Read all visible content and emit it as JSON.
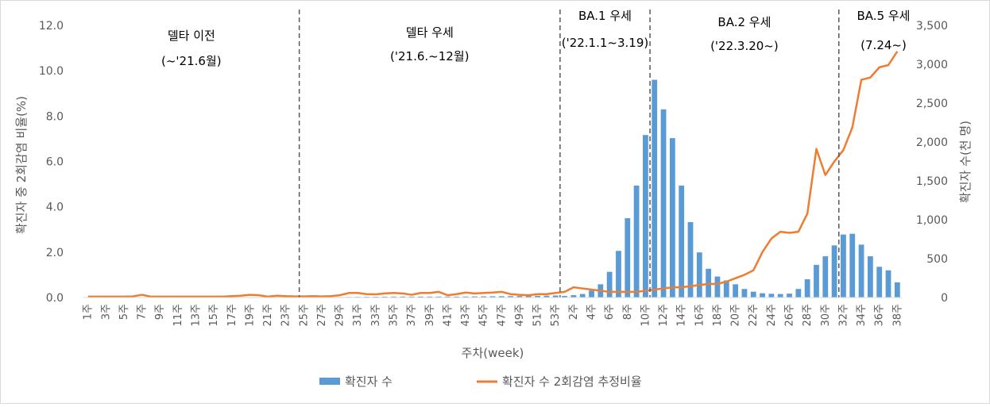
{
  "chart_data": {
    "type": "bar+line",
    "xlabel": "주차(week)",
    "ylabel_left": "확진자 중 2회감염 비율(%)",
    "ylabel_right": "확진자 수(천 명)",
    "ylim_left": [
      0,
      12
    ],
    "ylim_right": [
      0,
      3500
    ],
    "yticks_left": [
      "0.0",
      "2.0",
      "4.0",
      "6.0",
      "8.0",
      "10.0",
      "12.0"
    ],
    "yticks_right": [
      "0",
      "500",
      "1,000",
      "1,500",
      "2,000",
      "2,500",
      "3,000",
      "3,500"
    ],
    "categories": [
      "1주",
      "2주",
      "3주",
      "4주",
      "5주",
      "6주",
      "7주",
      "8주",
      "9주",
      "10주",
      "11주",
      "12주",
      "13주",
      "14주",
      "15주",
      "16주",
      "17주",
      "18주",
      "19주",
      "20주",
      "21주",
      "22주",
      "23주",
      "24주",
      "25주",
      "26주",
      "27주",
      "28주",
      "29주",
      "30주",
      "31주",
      "32주",
      "33주",
      "34주",
      "35주",
      "36주",
      "37주",
      "38주",
      "39주",
      "40주",
      "41주",
      "42주",
      "43주",
      "44주",
      "45주",
      "46주",
      "47주",
      "48주",
      "49주",
      "50주",
      "51주",
      "52주",
      "53주",
      "1주",
      "2주",
      "3주",
      "4주",
      "5주",
      "6주",
      "7주",
      "8주",
      "9주",
      "10주",
      "11주",
      "12주",
      "13주",
      "14주",
      "15주",
      "16주",
      "17주",
      "18주",
      "19주",
      "20주",
      "21주",
      "22주",
      "23주",
      "24주",
      "25주",
      "26주",
      "27주",
      "28주",
      "29주",
      "30주",
      "31주",
      "32주",
      "33주",
      "34주",
      "35주",
      "36주",
      "37주",
      "38주"
    ],
    "series": [
      {
        "name": "확진자 수",
        "type": "bar",
        "axis": "right",
        "color": "#5B9BD5",
        "values": [
          4,
          3,
          3,
          3,
          3,
          3,
          3,
          3,
          3,
          3,
          3,
          3,
          3,
          3,
          3,
          3,
          3,
          3,
          4,
          4,
          4,
          4,
          4,
          4,
          5,
          5,
          5,
          5,
          6,
          7,
          8,
          9,
          10,
          11,
          12,
          12,
          12,
          12,
          12,
          12,
          12,
          12,
          13,
          14,
          15,
          16,
          17,
          18,
          19,
          20,
          22,
          24,
          26,
          20,
          30,
          45,
          90,
          170,
          330,
          600,
          1020,
          1440,
          2090,
          2800,
          2420,
          2050,
          1440,
          970,
          580,
          370,
          270,
          220,
          170,
          110,
          75,
          55,
          48,
          45,
          50,
          110,
          235,
          420,
          530,
          670,
          810,
          820,
          680,
          530,
          395,
          350,
          195
        ]
      },
      {
        "name": "확진자 수 2회감염 추정비율",
        "type": "line",
        "axis": "left",
        "color": "#ED7D31",
        "values": [
          0.04,
          0.04,
          0.04,
          0.04,
          0.04,
          0.05,
          0.12,
          0.04,
          0.04,
          0.04,
          0.04,
          0.04,
          0.04,
          0.04,
          0.04,
          0.04,
          0.06,
          0.08,
          0.12,
          0.1,
          0.04,
          0.08,
          0.06,
          0.05,
          0.05,
          0.06,
          0.05,
          0.06,
          0.1,
          0.2,
          0.2,
          0.15,
          0.14,
          0.18,
          0.2,
          0.18,
          0.12,
          0.2,
          0.2,
          0.25,
          0.1,
          0.15,
          0.22,
          0.18,
          0.2,
          0.22,
          0.25,
          0.15,
          0.12,
          0.1,
          0.15,
          0.15,
          0.2,
          0.25,
          0.45,
          0.4,
          0.35,
          0.3,
          0.25,
          0.25,
          0.25,
          0.25,
          0.3,
          0.35,
          0.4,
          0.45,
          0.45,
          0.5,
          0.55,
          0.6,
          0.6,
          0.7,
          0.85,
          1.0,
          1.2,
          2.0,
          2.6,
          2.9,
          2.85,
          2.9,
          3.7,
          6.55,
          5.4,
          6.0,
          6.5,
          7.5,
          9.6,
          9.7,
          10.15,
          10.25,
          10.85
        ]
      }
    ],
    "periods": [
      {
        "title": "델타 이전",
        "sub": "(~'21.6월)"
      },
      {
        "title": "델타 우세",
        "sub": "('21.6.~12월)"
      },
      {
        "title": "BA.1 우세",
        "sub": "('22.1.1~3.19)"
      },
      {
        "title": "BA.2 우세",
        "sub": "('22.3.20~)"
      },
      {
        "title": "BA.5 우세",
        "sub": "(7.24~)"
      }
    ],
    "divider_after_category_index": [
      23,
      52,
      62,
      83
    ],
    "grid": false,
    "legend_position": "bottom"
  }
}
